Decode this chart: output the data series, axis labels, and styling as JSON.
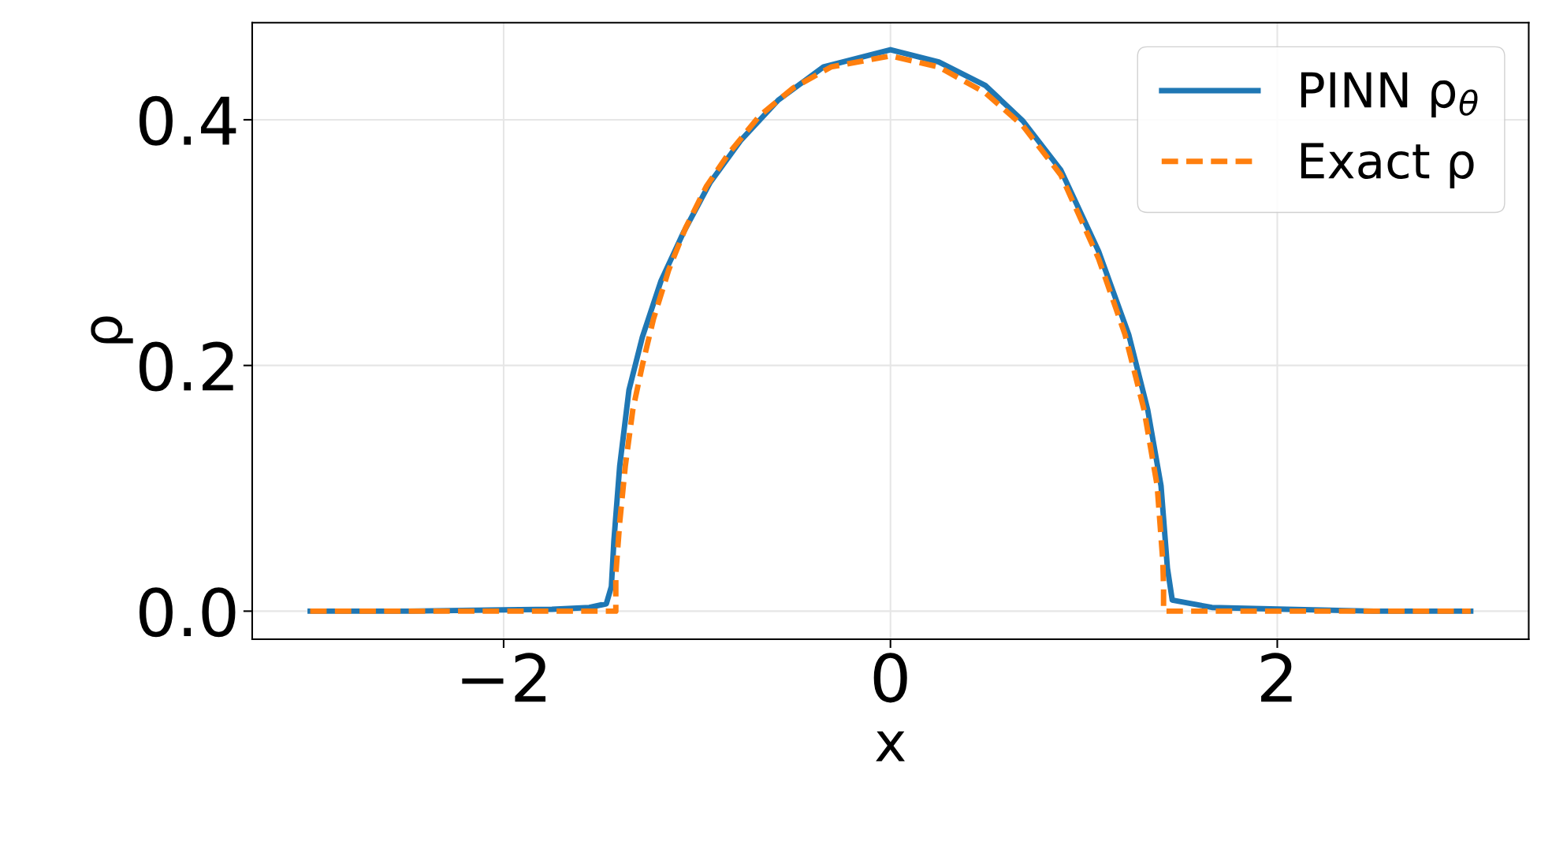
{
  "chart_data": {
    "type": "line",
    "xlabel": "x",
    "ylabel": "ρ",
    "xlim": [
      -3.3,
      3.3
    ],
    "ylim": [
      -0.0228,
      0.479
    ],
    "xticks": [
      {
        "value": -2,
        "label": "−2"
      },
      0,
      2
    ],
    "yticks": [
      {
        "value": 0,
        "label": "0.0"
      },
      0.2,
      0.4
    ],
    "grid": true,
    "legend": "top right",
    "series": [
      {
        "name": "PINN ρ$_{θ}$",
        "color": "#1f77b4",
        "line_style": "solid",
        "x": [
          -3.0,
          -2.5,
          -2.0,
          -1.75,
          -1.557,
          -1.469,
          -1.443,
          -1.43,
          -1.4,
          -1.352,
          -1.283,
          -1.186,
          -1.068,
          -0.932,
          -0.775,
          -0.58,
          -0.346,
          0,
          0.25,
          0.49,
          0.685,
          0.881,
          1.076,
          1.232,
          1.33,
          1.399,
          1.432,
          1.457,
          1.662,
          2.05,
          2.5,
          3.0
        ],
        "values": [
          0,
          0,
          0.001,
          0.0015,
          0.003,
          0.006,
          0.02,
          0.057,
          0.118,
          0.18,
          0.223,
          0.269,
          0.309,
          0.349,
          0.383,
          0.416,
          0.443,
          0.457,
          0.447,
          0.428,
          0.399,
          0.359,
          0.293,
          0.225,
          0.164,
          0.102,
          0.035,
          0.009,
          0.003,
          0.0015,
          0,
          0
        ]
      },
      {
        "name": "Exact ρ",
        "color": "#ff7f0e",
        "line_style": "dashed",
        "x": [
          -3.0,
          -1.42,
          -1.42,
          -1.4,
          -1.371,
          -1.332,
          -1.283,
          -1.225,
          -1.146,
          -1.059,
          -0.951,
          -0.834,
          -0.678,
          -0.502,
          -0.307,
          0,
          0.25,
          0.49,
          0.685,
          0.881,
          1.076,
          1.213,
          1.311,
          1.379,
          1.408,
          1.412,
          1.412,
          3.0
        ],
        "values": [
          0,
          0,
          0.03,
          0.072,
          0.118,
          0.164,
          0.2,
          0.238,
          0.278,
          0.312,
          0.346,
          0.373,
          0.403,
          0.426,
          0.443,
          0.452,
          0.443,
          0.422,
          0.395,
          0.355,
          0.287,
          0.225,
          0.164,
          0.102,
          0.041,
          0.02,
          0,
          0
        ]
      }
    ]
  }
}
